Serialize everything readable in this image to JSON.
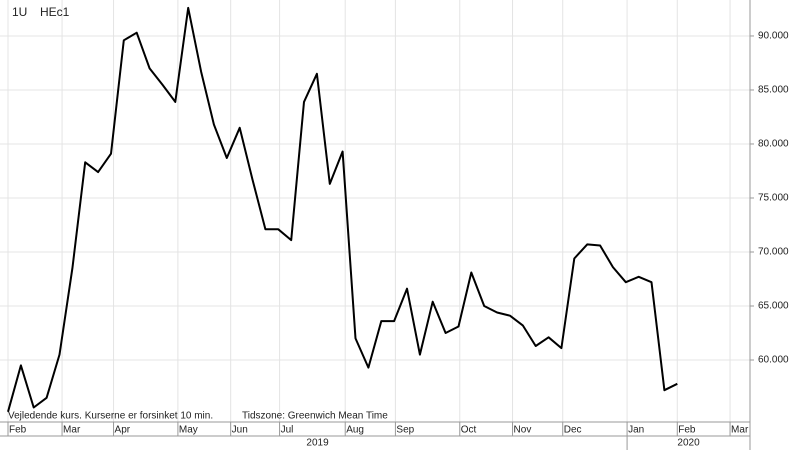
{
  "chart_data": {
    "type": "line",
    "interval": "1U",
    "title": "HEc1",
    "notes": [
      "Vejledende kurs. Kurserne er forsinket 10 min.",
      "Tidszone: Greenwich Mean Time"
    ],
    "color": "#000000",
    "grid": true,
    "values": [
      55.2,
      59.5,
      55.6,
      56.5,
      60.5,
      68.5,
      78.3,
      77.4,
      79.1,
      89.6,
      90.3,
      87.0,
      85.5,
      83.9,
      92.6,
      86.7,
      81.8,
      78.7,
      81.5,
      76.7,
      72.1,
      72.1,
      71.1,
      83.9,
      86.5,
      76.3,
      79.3,
      62.0,
      59.3,
      63.6,
      63.6,
      66.6,
      60.5,
      65.4,
      62.5,
      63.1,
      68.1,
      65.0,
      64.4,
      64.1,
      63.2,
      61.3,
      62.1,
      61.1,
      69.4,
      70.7,
      70.6,
      68.6,
      67.2,
      67.7,
      67.2,
      57.2,
      57.8
    ],
    "xlim": [
      0,
      57.65
    ],
    "xticks": [
      {
        "value": 0,
        "label": "Feb"
      },
      {
        "value": 4.2,
        "label": "Mar"
      },
      {
        "value": 8.2,
        "label": "Apr"
      },
      {
        "value": 13.2,
        "label": "May"
      },
      {
        "value": 17.3,
        "label": "Jun"
      },
      {
        "value": 21.1,
        "label": "Jul"
      },
      {
        "value": 26.2,
        "label": "Aug"
      },
      {
        "value": 30.1,
        "label": "Sep"
      },
      {
        "value": 35.1,
        "label": "Oct"
      },
      {
        "value": 39.2,
        "label": "Nov"
      },
      {
        "value": 43.1,
        "label": "Dec"
      },
      {
        "value": 48.1,
        "label": "Jan"
      },
      {
        "value": 52.0,
        "label": "Feb"
      },
      {
        "value": 56.1,
        "label": "Mar"
      }
    ],
    "years": [
      "2019",
      "2020"
    ],
    "ylim": [
      54.26,
      93.33
    ],
    "yticks": [
      {
        "value": 60,
        "label": "60.000"
      },
      {
        "value": 65,
        "label": "65.000"
      },
      {
        "value": 70,
        "label": "70.000"
      },
      {
        "value": 75,
        "label": "75.000"
      },
      {
        "value": 80,
        "label": "80.000"
      },
      {
        "value": 85,
        "label": "85.000"
      },
      {
        "value": 90,
        "label": "90.000"
      }
    ]
  }
}
